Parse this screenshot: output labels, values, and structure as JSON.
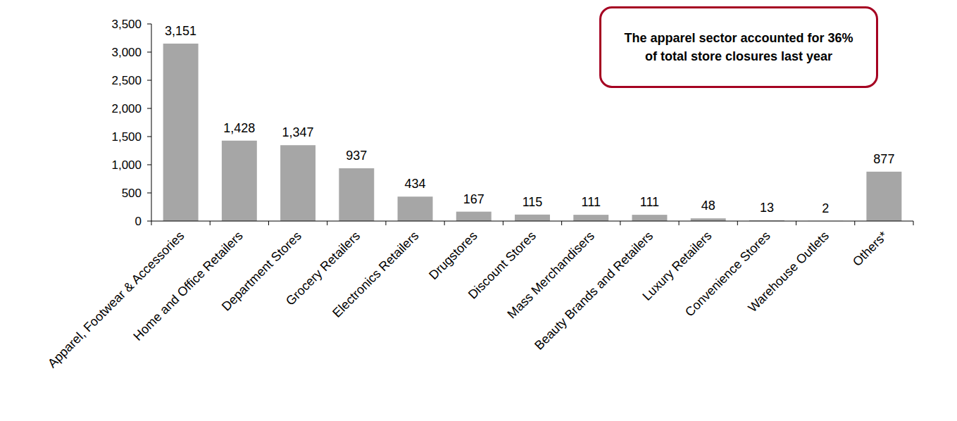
{
  "chart_data": {
    "type": "bar",
    "categories": [
      "Apparel, Footwear & Accessories",
      "Home and Office Retailers",
      "Department Stores",
      "Grocery Retailers",
      "Electronics Retailers",
      "Drugstores",
      "Discount Stores",
      "Mass Merchandisers",
      "Beauty Brands and Retailers",
      "Luxury Retailers",
      "Convenience Stores",
      "Warehouse Outlets",
      "Others*"
    ],
    "values": [
      3151,
      1428,
      1347,
      937,
      434,
      167,
      115,
      111,
      111,
      48,
      13,
      2,
      877
    ],
    "value_labels": [
      "3,151",
      "1,428",
      "1,347",
      "937",
      "434",
      "167",
      "115",
      "111",
      "111",
      "48",
      "13",
      "2",
      "877"
    ],
    "color": "#a6a6a6",
    "ylim": [
      0,
      3500
    ],
    "yticks": [
      0,
      500,
      {
        "value": 1000,
        "label": "1,000"
      },
      {
        "value": 1500,
        "label": "1,500"
      },
      {
        "value": 2000,
        "label": "2,000"
      },
      {
        "value": 2500,
        "label": "2,500"
      },
      {
        "value": 3000,
        "label": "3,000"
      },
      {
        "value": 3500,
        "label": "3,500"
      }
    ],
    "grid": false,
    "data_labels": true,
    "annotations": [
      "The apparel sector accounted for 36% of total store closures last year"
    ]
  }
}
